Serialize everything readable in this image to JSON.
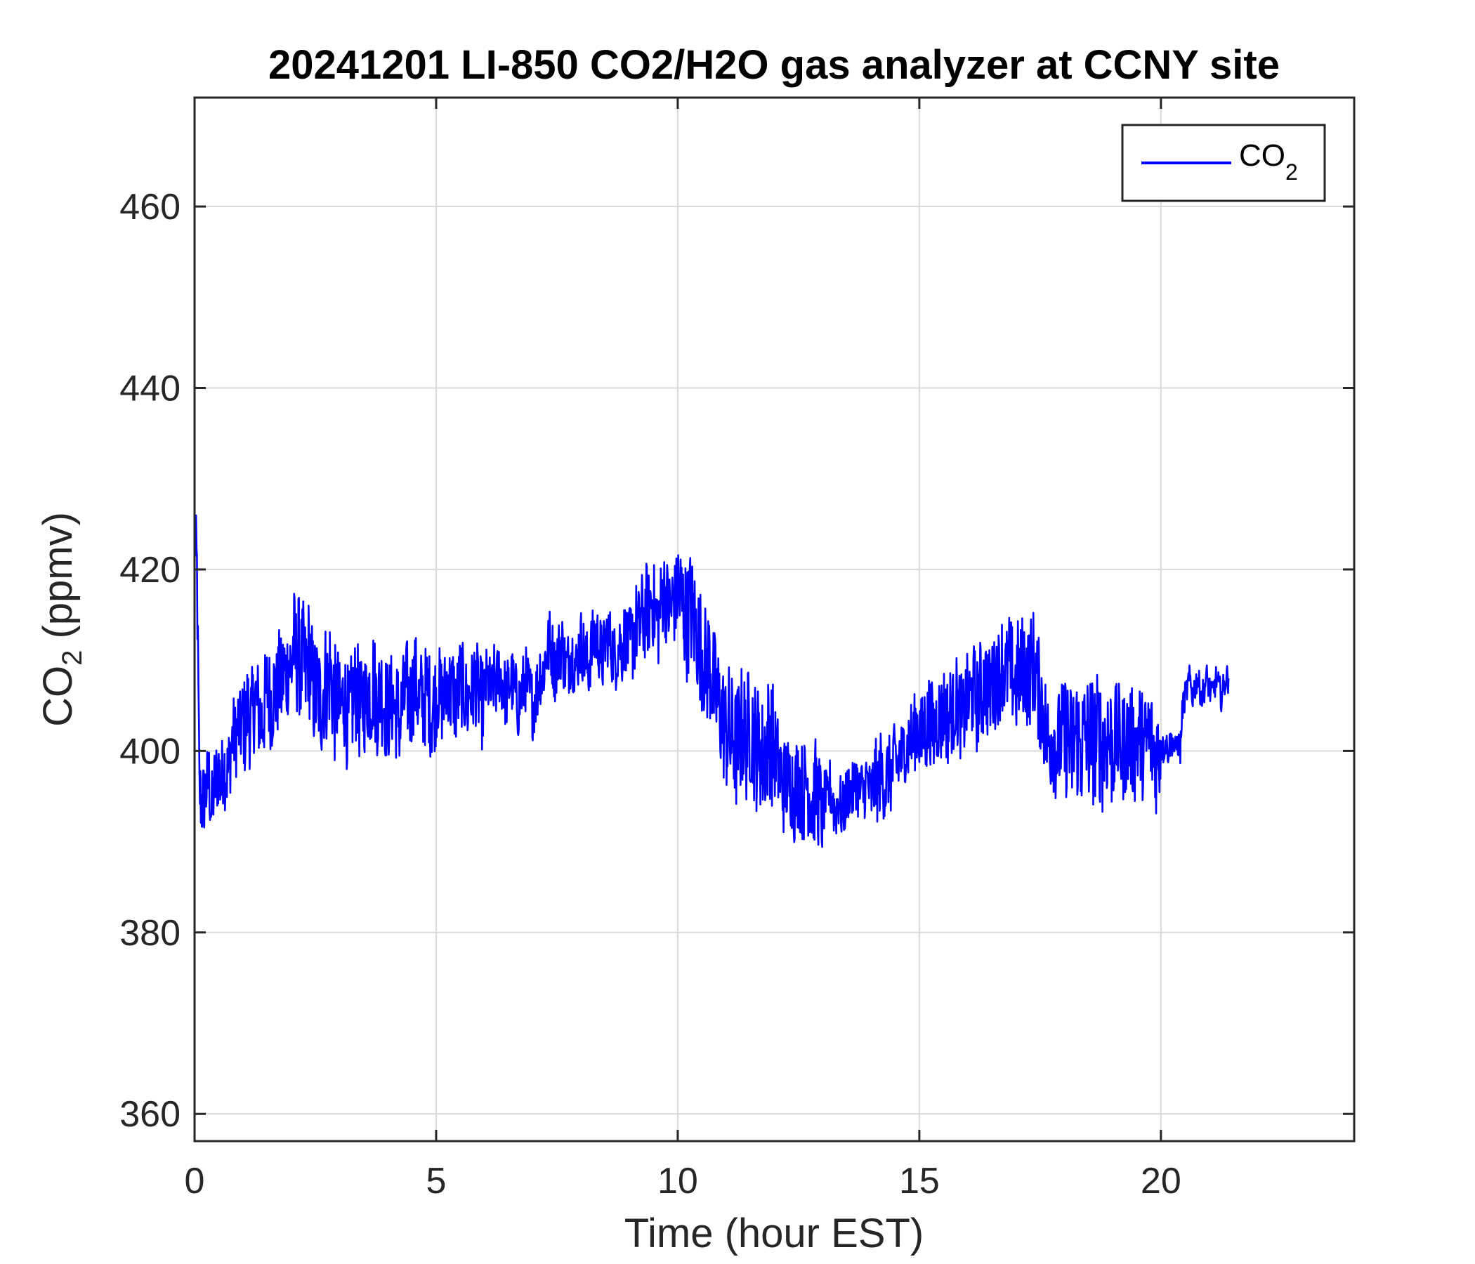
{
  "chart_data": {
    "type": "line",
    "title": "20241201 LI-850 CO2/H2O gas analyzer at CCNY site",
    "xlabel": "Time (hour EST)",
    "ylabel": {
      "main": "CO",
      "sub": "2",
      "rest": " (ppmv)"
    },
    "xlim": [
      0,
      24
    ],
    "ylim": [
      357,
      472
    ],
    "xticks": [
      0,
      5,
      10,
      15,
      20
    ],
    "yticks": [
      360,
      380,
      400,
      420,
      440,
      460
    ],
    "grid": true,
    "legend": {
      "position": "top-right",
      "entries": [
        {
          "main": "CO",
          "sub": "2",
          "color": "#0000ff"
        }
      ]
    },
    "series": [
      {
        "name": "CO2",
        "color": "#0000ff",
        "x_start": 0,
        "x_step": 0.05,
        "noise_amplitude": [
          8,
          10,
          12,
          11,
          10,
          9,
          7,
          7,
          7,
          9,
          12,
          13,
          10,
          6,
          8,
          9,
          10,
          11,
          13,
          11,
          3,
          3,
          3,
          5
        ],
        "values": [
          424,
          420,
          396,
          394,
          395,
          396,
          397,
          393,
          396,
          397,
          398,
          396,
          399,
          397,
          398,
          400,
          402,
          401,
          403,
          402,
          404,
          402,
          405,
          403,
          404,
          406,
          405,
          404,
          403,
          405,
          407,
          406,
          405,
          407,
          406,
          408,
          407,
          409,
          408,
          410,
          409,
          412,
          410,
          411,
          409,
          410,
          408,
          411,
          409,
          407,
          406,
          407,
          405,
          406,
          408,
          407,
          409,
          407,
          405,
          406,
          404,
          405,
          406,
          404,
          403,
          405,
          406,
          407,
          405,
          404,
          406,
          405,
          407,
          406,
          408,
          406,
          405,
          407,
          406,
          405,
          404,
          405,
          406,
          404,
          405,
          403,
          405,
          406,
          407,
          405,
          406,
          408,
          407,
          405,
          406,
          405,
          407,
          406,
          404,
          405,
          406,
          407,
          406,
          405,
          407,
          408,
          406,
          407,
          405,
          406,
          408,
          407,
          406,
          405,
          407,
          406,
          408,
          407,
          406,
          405,
          406,
          408,
          407,
          406,
          408,
          407,
          409,
          408,
          407,
          406,
          407,
          408,
          407,
          406,
          405,
          406,
          407,
          408,
          407,
          406,
          405,
          406,
          407,
          409,
          408,
          410,
          411,
          412,
          411,
          409,
          410,
          411,
          412,
          410,
          409,
          410,
          411,
          410,
          409,
          411,
          412,
          411,
          410,
          409,
          411,
          412,
          413,
          412,
          411,
          410,
          412,
          413,
          412,
          411,
          410,
          411,
          412,
          411,
          413,
          412,
          411,
          412,
          413,
          414,
          413,
          415,
          414,
          416,
          415,
          417,
          416,
          415,
          414,
          416,
          418,
          417,
          416,
          415,
          417,
          416,
          418,
          417,
          416,
          415,
          414,
          416,
          415,
          414,
          413,
          412,
          411,
          410,
          409,
          410,
          408,
          407,
          406,
          405,
          404,
          403,
          402,
          403,
          401,
          402,
          400,
          401,
          402,
          403,
          401,
          402,
          403,
          402,
          401,
          400,
          401,
          399,
          400,
          401,
          402,
          401,
          400,
          399,
          398,
          397,
          396,
          397,
          396,
          397,
          395,
          396,
          397,
          396,
          395,
          397,
          396,
          395,
          394,
          396,
          395,
          394,
          393,
          395,
          394,
          396,
          395,
          393,
          394,
          395,
          393,
          394,
          395,
          396,
          395,
          396,
          397,
          395,
          396,
          395,
          397,
          396,
          395,
          396,
          397,
          396,
          398,
          397,
          396,
          398,
          397,
          398,
          399,
          398,
          400,
          399,
          401,
          400,
          402,
          401,
          402,
          403,
          402,
          401,
          403,
          402,
          404,
          403,
          402,
          403,
          404,
          403,
          405,
          404,
          403,
          405,
          404,
          406,
          405,
          404,
          403,
          405,
          406,
          405,
          407,
          406,
          405,
          407,
          406,
          408,
          407,
          406,
          408,
          407,
          409,
          408,
          410,
          409,
          408,
          410,
          409,
          408,
          407,
          409,
          408,
          410,
          409,
          408,
          409,
          410,
          409,
          407,
          406,
          405,
          403,
          401,
          401,
          402,
          401,
          400,
          401,
          402,
          401,
          402,
          401,
          400,
          401,
          402,
          401,
          400,
          401,
          402,
          401,
          402,
          401,
          401,
          402,
          401,
          400,
          401,
          402,
          401,
          400,
          401,
          402,
          401,
          400,
          401,
          401,
          402,
          401,
          400,
          401,
          402,
          401,
          400,
          401,
          402,
          401,
          400,
          399,
          400,
          401,
          400,
          401,
          400,
          401,
          401,
          400,
          401,
          400,
          405,
          406,
          407,
          408,
          406,
          407,
          408,
          407,
          406,
          407,
          408,
          407,
          406,
          407,
          408,
          407,
          406,
          407,
          408,
          408
        ]
      }
    ]
  }
}
